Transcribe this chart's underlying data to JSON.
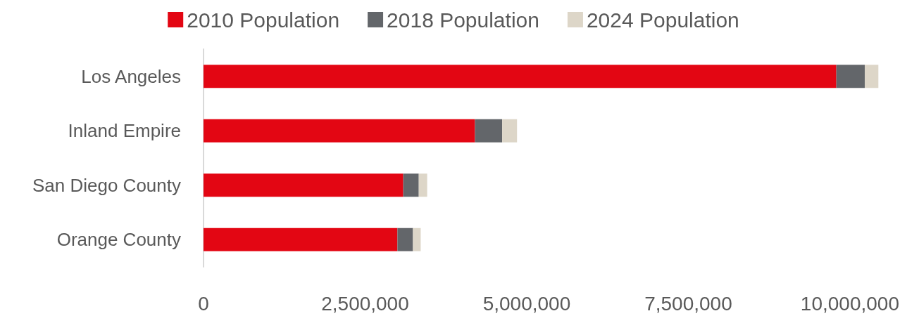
{
  "chart_data": {
    "type": "bar",
    "orientation": "horizontal",
    "stacked": true,
    "categories": [
      "Los Angeles",
      "Inland Empire",
      "San Diego County",
      "Orange County"
    ],
    "series": [
      {
        "name": "2010 Population",
        "color": "#e30613",
        "values": [
          9790000,
          4200000,
          3090000,
          3000000
        ]
      },
      {
        "name": "2018 Population",
        "color": "#63666a",
        "values": [
          440000,
          420000,
          240000,
          240000
        ]
      },
      {
        "name": "2024 Population",
        "color": "#ddd6c8",
        "values": [
          210000,
          230000,
          130000,
          120000
        ]
      }
    ],
    "xlim": [
      0,
      10500000
    ],
    "xticks": [
      0,
      {
        "value": 2500000,
        "label": "2,500,000"
      },
      {
        "value": 5000000,
        "label": "5,000,000"
      },
      {
        "value": 7500000,
        "label": "7,500,000"
      },
      {
        "value": 10000000,
        "label": "10,000,000"
      }
    ],
    "grid": false,
    "legend": "top"
  }
}
